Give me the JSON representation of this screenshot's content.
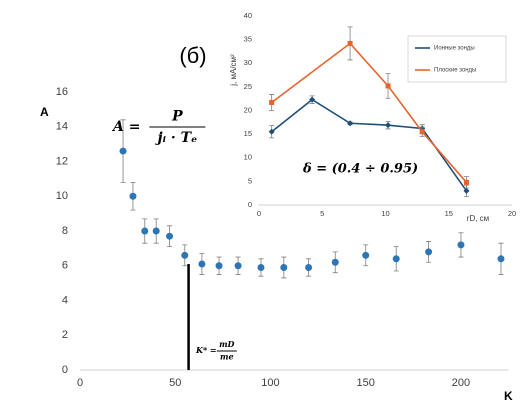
{
  "chart_data": [
    {
      "type": "scatter",
      "title": "(б)",
      "y_label": "A",
      "x_label": "K",
      "x": [
        22.6,
        27.8,
        34,
        40,
        47,
        55,
        64,
        73,
        83,
        95,
        107,
        120,
        134,
        150,
        166,
        183,
        200,
        221
      ],
      "values": [
        12.6,
        10.0,
        8.0,
        8.0,
        7.7,
        6.6,
        6.1,
        6.0,
        6.0,
        5.9,
        5.9,
        5.9,
        6.2,
        6.6,
        6.4,
        6.8,
        7.2,
        6.4
      ],
      "errors": [
        1.8,
        0.8,
        0.7,
        0.7,
        0.6,
        0.6,
        0.6,
        0.5,
        0.5,
        0.5,
        0.6,
        0.5,
        0.6,
        0.6,
        0.7,
        0.6,
        0.7,
        0.9
      ],
      "color": "#2e75b6",
      "xlim": [
        0,
        225
      ],
      "ylim": [
        0,
        16
      ],
      "xticks": [
        0,
        50,
        100,
        150,
        200
      ],
      "yticks": [
        0,
        2,
        4,
        6,
        8,
        10,
        12,
        14,
        16
      ],
      "marker_line": {
        "x": 57,
        "y": 6.1
      },
      "formula_a": {
        "lhs": "A =",
        "num": "P",
        "den": "jᵢ · Tₑ"
      },
      "formula_k": {
        "lhs": "K* =",
        "num": "mD",
        "den": "me"
      }
    },
    {
      "type": "line",
      "y_label": "j, мА/см²",
      "x_label": "rD, см",
      "series": [
        {
          "name": "Ионные зонды",
          "color": "#1f4e79",
          "x": [
            1,
            4.2,
            7.2,
            10.2,
            12.9,
            16.4
          ],
          "values": [
            15.5,
            22.3,
            17.3,
            16.9,
            16.2,
            3.0
          ],
          "errors": [
            1.3,
            0.8,
            0.3,
            0.8,
            0.8,
            1.2
          ]
        },
        {
          "name": "Плоские зонды",
          "color": "#e8632b",
          "x": [
            1,
            7.2,
            10.2,
            12.9,
            16.4
          ],
          "values": [
            21.7,
            34.2,
            25.2,
            15.5,
            4.8
          ],
          "errors": [
            1.7,
            3.5,
            2.6,
            1.0,
            1.2
          ]
        }
      ],
      "xlim": [
        0,
        20
      ],
      "ylim": [
        0,
        40
      ],
      "xticks": [
        0,
        5,
        10,
        15,
        20
      ],
      "yticks": [
        0,
        5,
        10,
        15,
        20,
        25,
        30,
        35,
        40
      ],
      "formula": "δ = (0.4 ÷ 0.95)"
    }
  ]
}
